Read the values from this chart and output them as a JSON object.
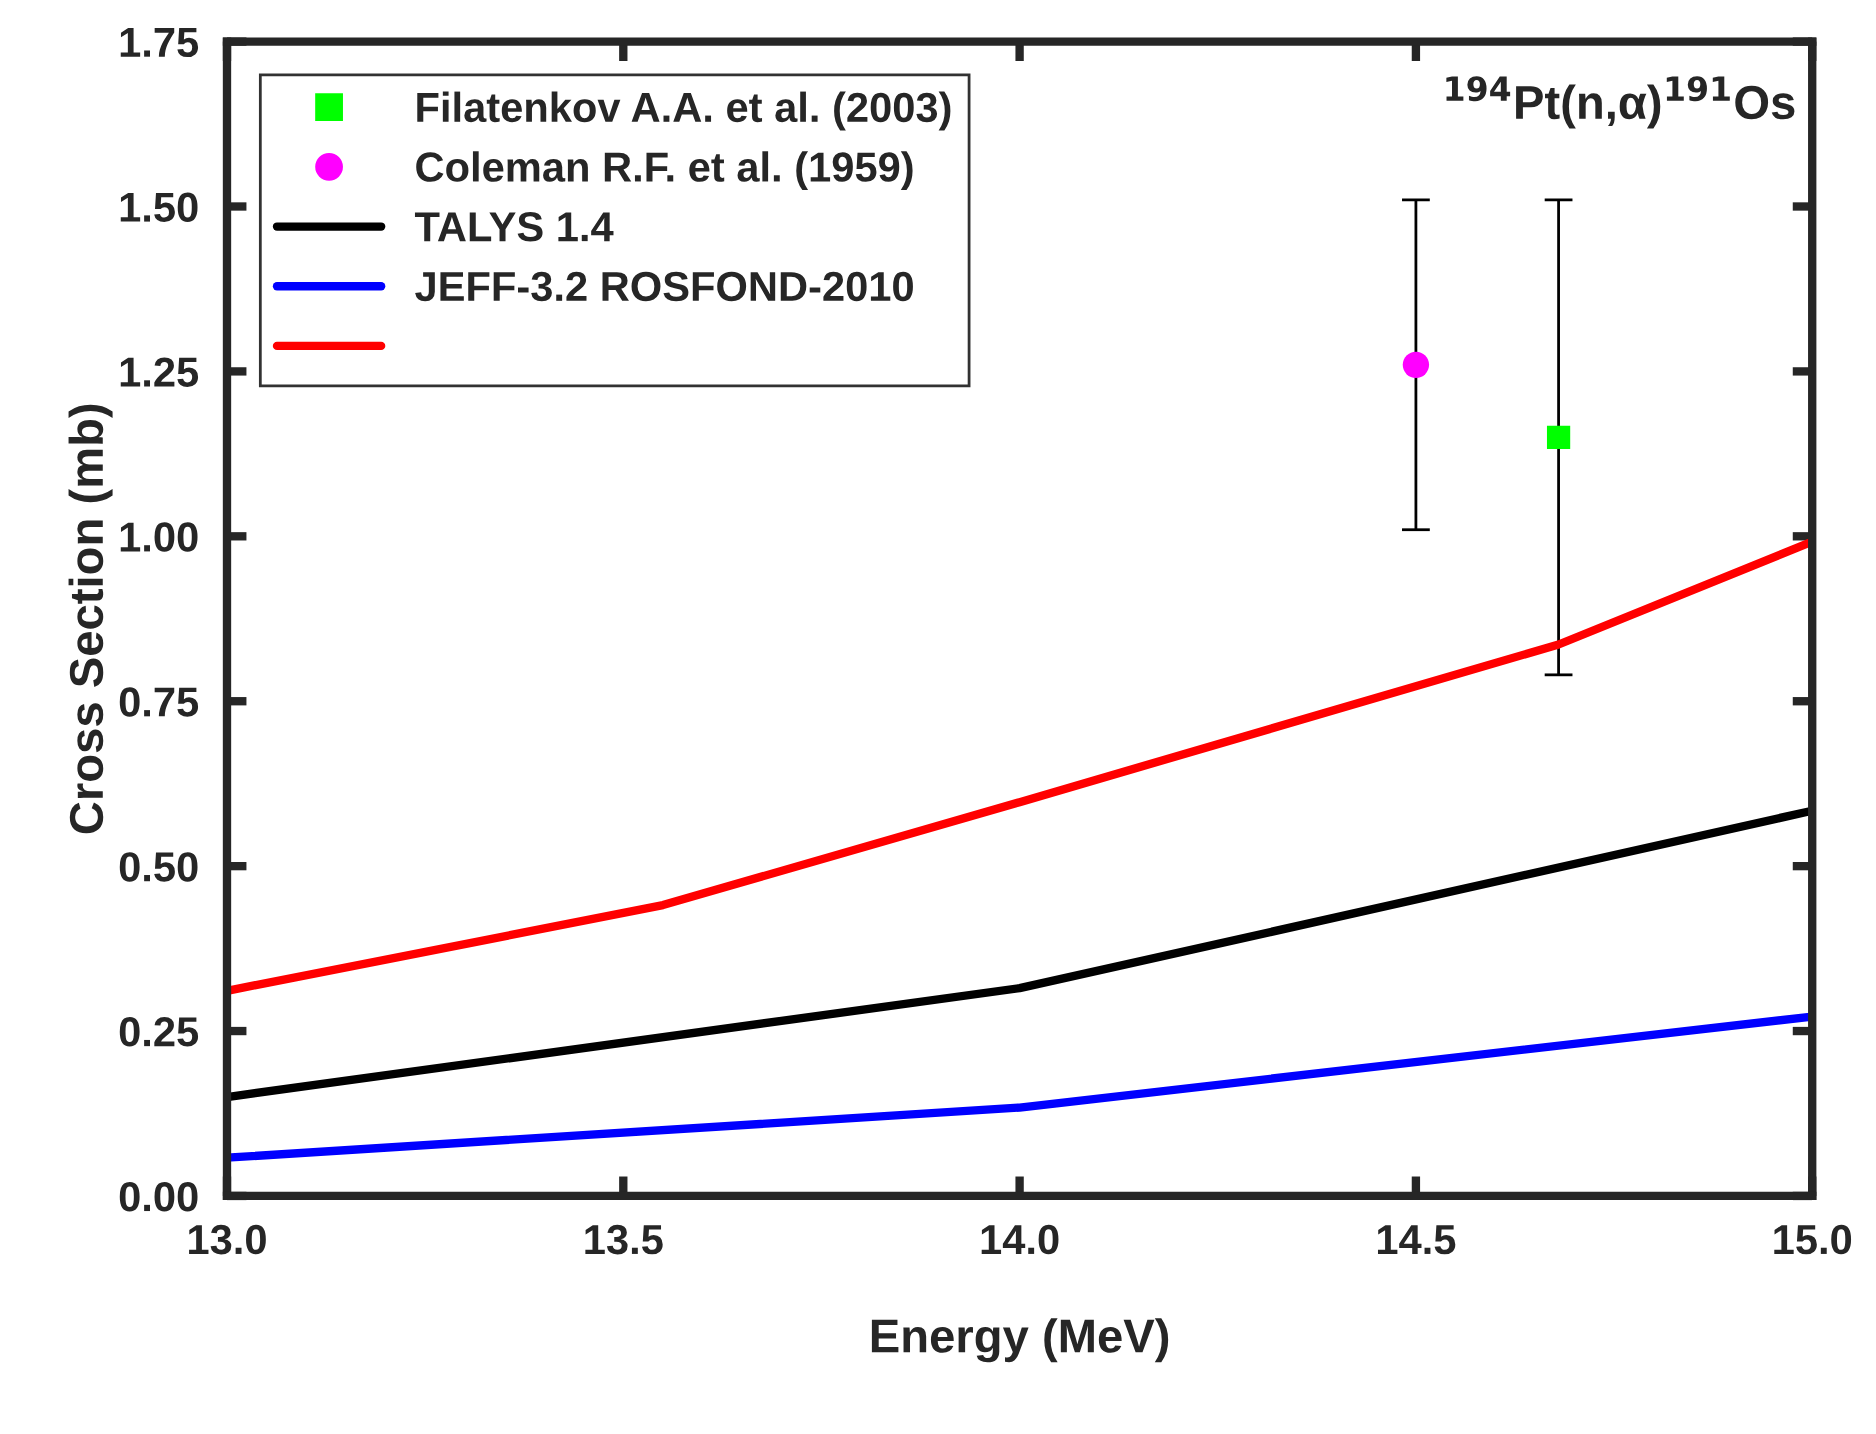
{
  "chart_data": {
    "type": "line",
    "xlabel": "Energy (MeV)",
    "ylabel": "Cross Section (mb)",
    "annotations": [
      "$^{194}$Pt(n,α)$^{191}$Os"
    ],
    "xlim": [
      13.0,
      15.0
    ],
    "xticks": [
      {
        "value": 13,
        "label": "13.0"
      },
      13.5,
      {
        "value": 14,
        "label": "14.0"
      },
      14.5,
      {
        "value": 15,
        "label": "15.0"
      }
    ],
    "ylim": [
      0,
      1.75
    ],
    "yticks": [
      {
        "value": 0,
        "label": "0.00"
      },
      {
        "value": 0.25,
        "label": "0.25"
      },
      {
        "value": 0.5,
        "label": "0.50"
      },
      {
        "value": 0.75,
        "label": "0.75"
      },
      {
        "value": 1.0,
        "label": "1.00"
      },
      {
        "value": 1.25,
        "label": "1.25"
      },
      {
        "value": 1.5,
        "label": "1.50"
      },
      {
        "value": 1.75,
        "label": "1.75"
      }
    ],
    "grid": false,
    "legend": "top left",
    "series": [
      {
        "name": "Filatenkov A.A. et al. (2003)",
        "type": "scatter",
        "marker": "square",
        "color": "#00ff00",
        "x": [
          14.68
        ],
        "values": [
          1.15
        ],
        "errors": [
          [
            0.79,
            1.51
          ]
        ]
      },
      {
        "name": "Coleman R.F. et al. (1959)",
        "type": "scatter",
        "marker": "circle",
        "color": "#ff00ff",
        "x": [
          14.5
        ],
        "values": [
          1.26
        ],
        "errors": [
          0.25
        ]
      },
      {
        "name": "TALYS 1.4",
        "color": "#000000",
        "x": [
          13.0,
          14.0,
          15.0
        ],
        "values": [
          0.15,
          0.315,
          0.584
        ]
      },
      {
        "name": "JEFF-3.2 ROSFOND-2010",
        "color": "#0000ff",
        "x": [
          13.0,
          14.0,
          15.0
        ],
        "values": [
          0.058,
          0.134,
          0.272
        ]
      },
      {
        "color": "#ff0000",
        "x": [
          13.0,
          13.55,
          14.0,
          14.68,
          15.0
        ],
        "values": [
          0.311,
          0.441,
          0.597,
          0.836,
          0.992
        ]
      }
    ]
  }
}
